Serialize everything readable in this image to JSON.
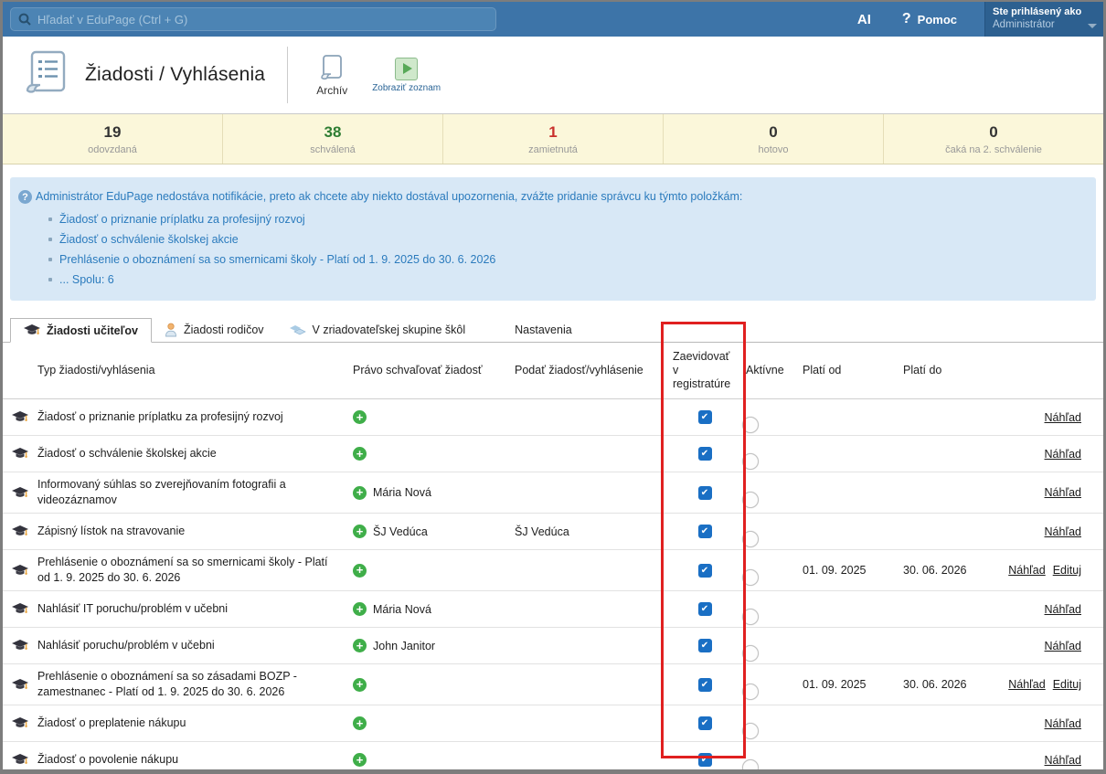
{
  "topbar": {
    "search_placeholder": "Hľadať v EduPage (Ctrl + G)",
    "ai_label": "AI",
    "help_icon": "?",
    "help_label": "Pomoc",
    "user_label": "Ste prihlásený ako",
    "user_value": "Administrátor"
  },
  "header": {
    "title": "Žiadosti / Vyhlásenia",
    "archive_label": "Archív",
    "show_list_label": "Zobraziť zoznam"
  },
  "stats": {
    "items": [
      {
        "value": "19",
        "label": "odovzdaná",
        "color": "#333333"
      },
      {
        "value": "38",
        "label": "schválená",
        "color": "#2e7d32"
      },
      {
        "value": "1",
        "label": "zamietnutá",
        "color": "#c9302c"
      },
      {
        "value": "0",
        "label": "hotovo",
        "color": "#333333"
      },
      {
        "value": "0",
        "label": "čaká na 2. schválenie",
        "color": "#333333"
      }
    ]
  },
  "infobox": {
    "intro": "Administrátor EduPage nedostáva notifikácie, preto ak chcete aby niekto dostával upozornenia, zvážte pridanie správcu ku týmto položkám:",
    "items": [
      "Žiadosť o priznanie príplatku za profesijný rozvoj",
      "Žiadosť o schválenie školskej akcie",
      "Prehlásenie o oboznámení sa so smernicami školy - Platí od 1. 9. 2025 do 30. 6. 2026",
      "... Spolu: 6"
    ]
  },
  "tabs": {
    "items": [
      {
        "label": "Žiadosti učiteľov"
      },
      {
        "label": "Žiadosti rodičov"
      },
      {
        "label": "V zriadovateľskej skupine škôl"
      },
      {
        "label": "Nastavenia"
      }
    ]
  },
  "table": {
    "headers": {
      "type": "Typ žiadosti/vyhlásenia",
      "approve": "Právo schvaľovať žiadosť",
      "submit": "Podať žiadosť/vyhlásenie",
      "registry": "Zaevidovať v registratúre",
      "active": "Aktívne",
      "valid_from": "Platí od",
      "valid_to": "Platí do"
    },
    "rows": [
      {
        "title": "Žiadosť o priznanie príplatku za profesijný rozvoj",
        "approver": "",
        "submitter": "",
        "registry_checked": true,
        "active": true,
        "valid_from": "",
        "valid_to": "",
        "links": [
          "Náhľad"
        ]
      },
      {
        "title": "Žiadosť o schválenie školskej akcie",
        "approver": "",
        "submitter": "",
        "registry_checked": true,
        "active": true,
        "valid_from": "",
        "valid_to": "",
        "links": [
          "Náhľad"
        ]
      },
      {
        "title": "Informovaný súhlas so zverejňovaním fotografii a videozáznamov",
        "approver": "Mária Nová",
        "submitter": "",
        "registry_checked": true,
        "active": true,
        "valid_from": "",
        "valid_to": "",
        "links": [
          "Náhľad"
        ]
      },
      {
        "title": "Zápisný lístok na stravovanie",
        "approver": "ŠJ Vedúca",
        "submitter": "ŠJ Vedúca",
        "registry_checked": true,
        "active": true,
        "valid_from": "",
        "valid_to": "",
        "links": [
          "Náhľad"
        ]
      },
      {
        "title": "Prehlásenie o oboznámení sa so smernicami školy - Platí od 1. 9. 2025 do 30. 6. 2026",
        "approver": "",
        "submitter": "",
        "registry_checked": true,
        "active": true,
        "valid_from": "01. 09. 2025",
        "valid_to": "30. 06. 2026",
        "links": [
          "Náhľad",
          "Edituj"
        ]
      },
      {
        "title": "Nahlásiť IT poruchu/problém v učebni",
        "approver": "Mária Nová",
        "submitter": "",
        "registry_checked": true,
        "active": true,
        "valid_from": "",
        "valid_to": "",
        "links": [
          "Náhľad"
        ]
      },
      {
        "title": "Nahlásiť poruchu/problém v učebni",
        "approver": "John Janitor",
        "submitter": "",
        "registry_checked": true,
        "active": true,
        "valid_from": "",
        "valid_to": "",
        "links": [
          "Náhľad"
        ]
      },
      {
        "title": "Prehlásenie o oboznámení sa so zásadami BOZP - zamestnanec - Platí od 1. 9. 2025 do 30. 6. 2026",
        "approver": "",
        "submitter": "",
        "registry_checked": true,
        "active": true,
        "valid_from": "01. 09. 2025",
        "valid_to": "30. 06. 2026",
        "links": [
          "Náhľad",
          "Edituj"
        ]
      },
      {
        "title": "Žiadosť o preplatenie nákupu",
        "approver": "",
        "submitter": "",
        "registry_checked": true,
        "active": true,
        "valid_from": "",
        "valid_to": "",
        "links": [
          "Náhľad"
        ]
      },
      {
        "title": "Žiadosť o povolenie nákupu",
        "approver": "",
        "submitter": "",
        "registry_checked": true,
        "active": true,
        "valid_from": "",
        "valid_to": "",
        "links": [
          "Náhľad"
        ]
      }
    ]
  },
  "colors": {
    "topbar_blue": "#3d74a8",
    "highlight_red": "#e02020",
    "toggle_blue": "#6aa6d8",
    "checkbox_blue": "#1a6fc4",
    "plus_green": "#3fae49",
    "stats_bg": "#fbf7da",
    "infobox_bg": "#d8e8f6"
  }
}
